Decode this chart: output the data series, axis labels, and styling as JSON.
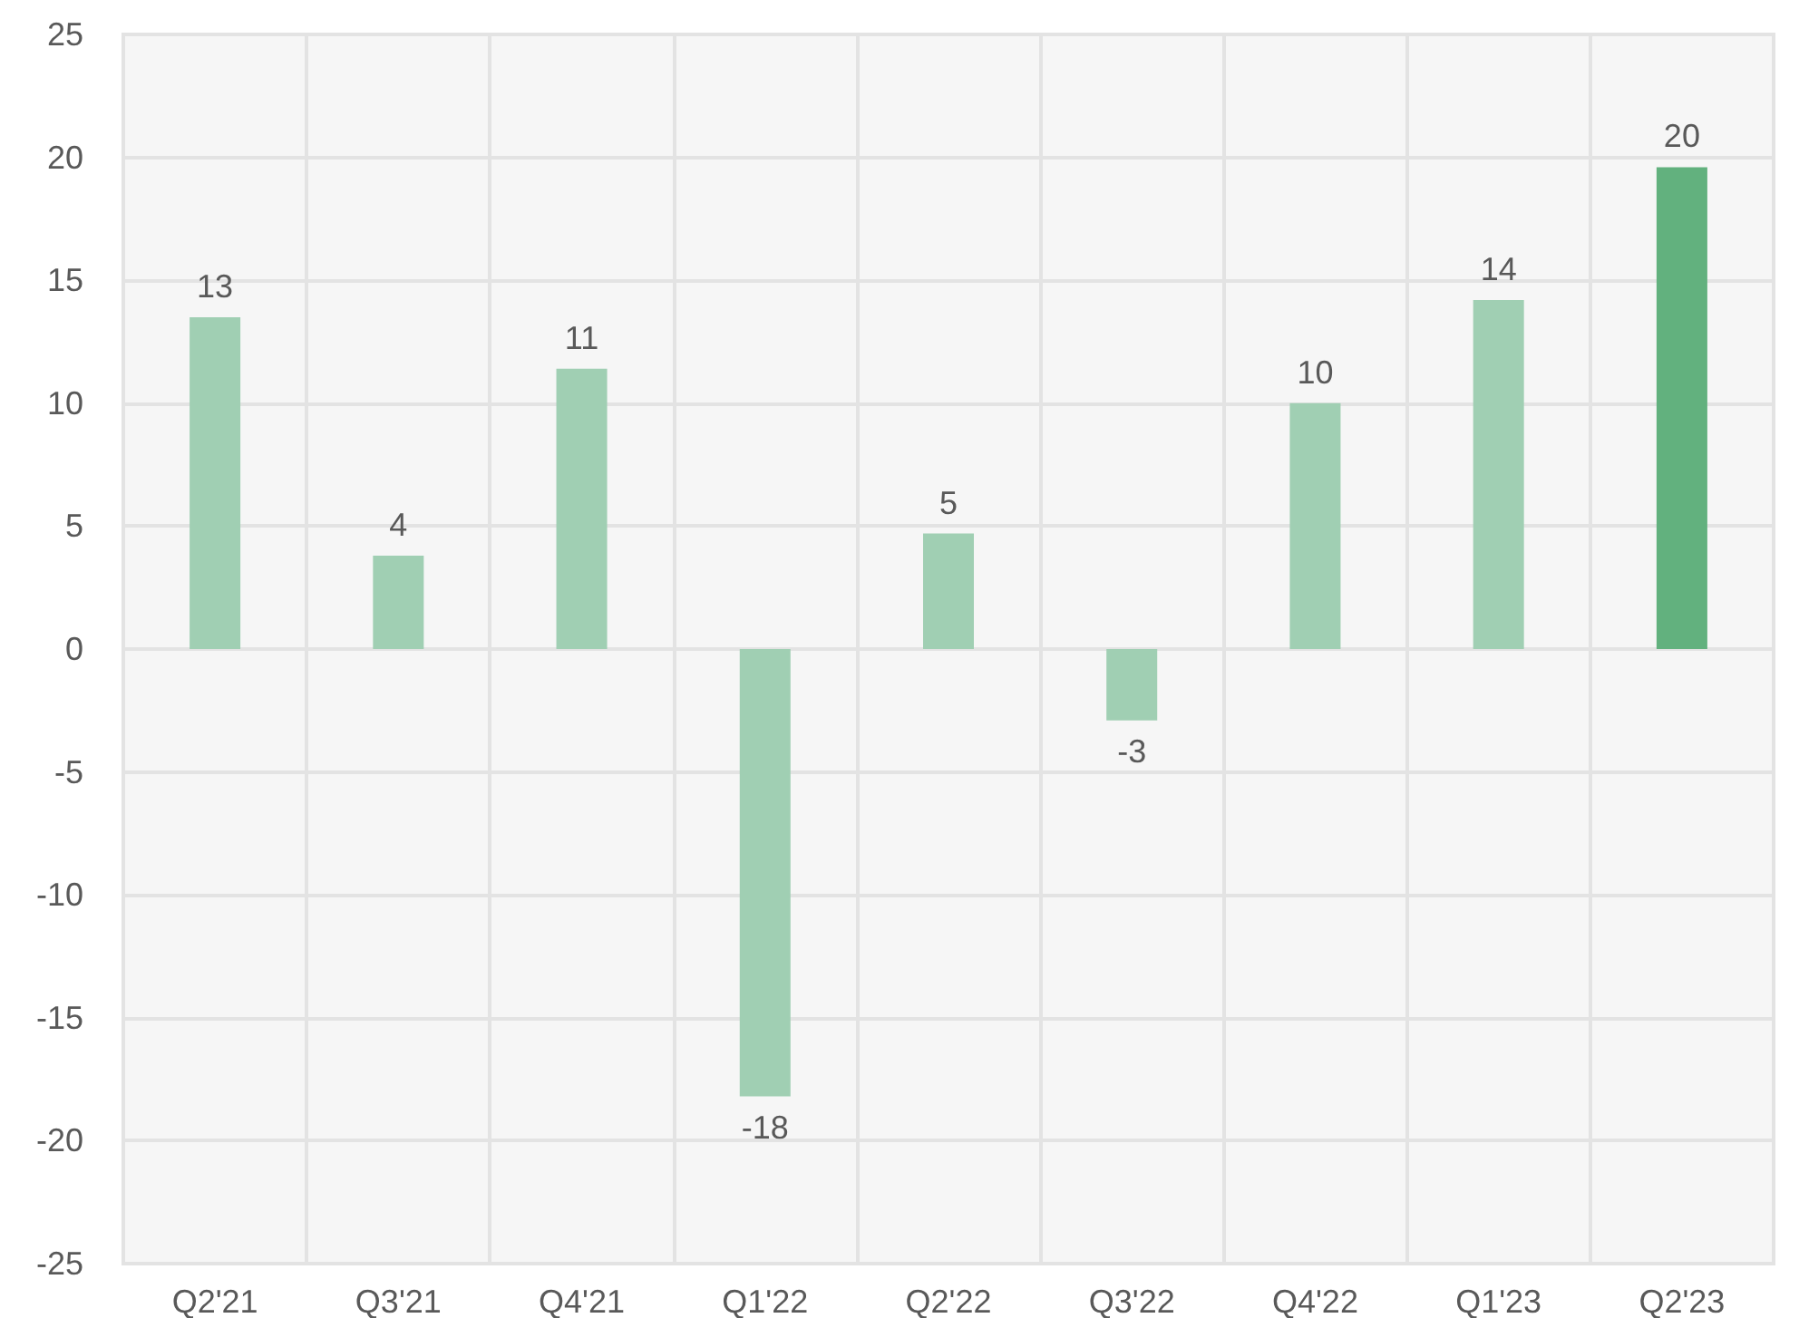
{
  "chart_data": {
    "type": "bar",
    "categories": [
      "Q2'21",
      "Q3'21",
      "Q4'21",
      "Q1'22",
      "Q2'22",
      "Q3'22",
      "Q4'22",
      "Q1'23",
      "Q2'23"
    ],
    "values": [
      13.5,
      3.8,
      11.4,
      -18.2,
      4.7,
      -2.9,
      10.0,
      14.2,
      19.6
    ],
    "value_labels": [
      "13",
      "4",
      "11",
      "-18",
      "5",
      "-3",
      "10",
      "14",
      "20"
    ],
    "colors": [
      "#a0cfb3",
      "#a0cfb3",
      "#a0cfb3",
      "#a0cfb3",
      "#a0cfb3",
      "#a0cfb3",
      "#a0cfb3",
      "#a0cfb3",
      "#62b17e"
    ],
    "ylim": [
      -25,
      25
    ],
    "yticks": [
      -25,
      -20,
      -15,
      -10,
      -5,
      0,
      5,
      10,
      15,
      20,
      25
    ],
    "grid": true
  }
}
